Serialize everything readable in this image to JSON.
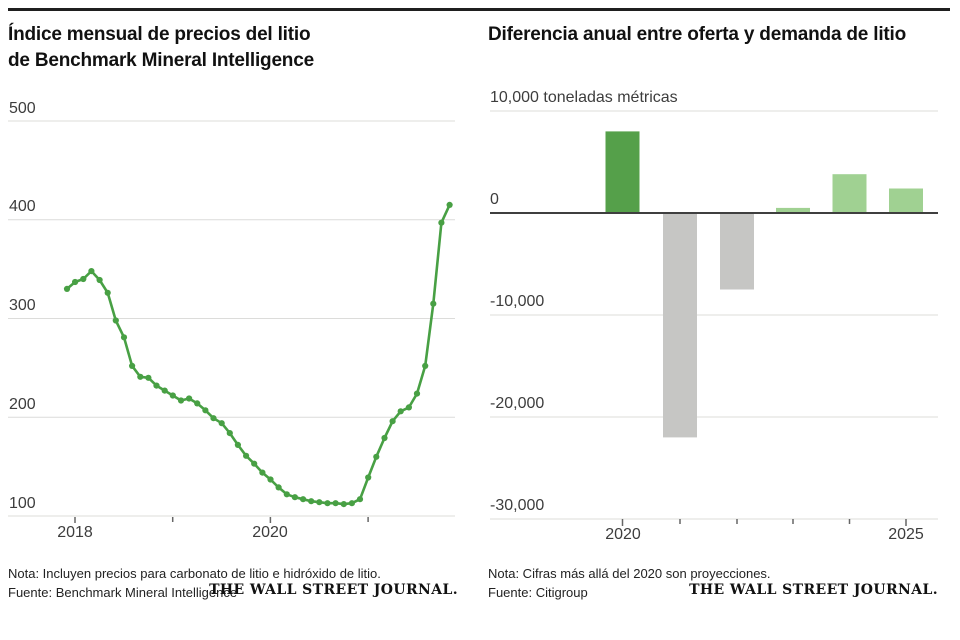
{
  "page": {
    "background": "#ffffff",
    "brand": "THE WALL STREET JOURNAL."
  },
  "left_panel": {
    "title_line1": "Índice mensual de precios del litio",
    "title_line2": "de Benchmark Mineral Intelligence",
    "note": "Nota: Incluyen precios para carbonato de litio e hidróxido de litio.",
    "source": "Fuente: Benchmark Mineral Intelligence",
    "brand": "THE WALL STREET JOURNAL."
  },
  "right_panel": {
    "title": "Diferencia anual entre oferta y demanda de litio",
    "note": "Nota: Cifras más allá del 2020 son proyecciones.",
    "source": "Fuente: Citigroup",
    "brand": "THE WALL STREET JOURNAL."
  },
  "chart_data": [
    {
      "type": "line",
      "title": "Índice mensual de precios del litio de Benchmark Mineral Intelligence",
      "frequency": "monthly",
      "start_month": "2017-12",
      "end_month": "2021-11",
      "values": [
        330,
        337,
        340,
        348,
        339,
        326,
        298,
        281,
        252,
        241,
        240,
        232,
        227,
        222,
        217,
        219,
        214,
        207,
        199,
        194,
        184,
        172,
        161,
        153,
        144,
        137,
        129,
        122,
        119,
        117,
        115,
        114,
        113,
        113,
        112,
        113,
        117,
        139,
        160,
        179,
        196,
        206,
        210,
        224,
        252,
        315,
        397,
        415
      ],
      "ylim": [
        100,
        500
      ],
      "yticks": [
        500,
        400,
        300,
        200,
        100
      ],
      "ytick_labels": [
        "500",
        "400",
        "300",
        "200",
        "100"
      ],
      "xticks": [
        2018,
        2019,
        2020,
        2021
      ],
      "xtick_labels": [
        "2018",
        "",
        "2020",
        ""
      ],
      "grid": true,
      "line_color": "#48a044"
    },
    {
      "type": "bar",
      "title": "Diferencia anual entre oferta y demanda de litio",
      "unit_label": "10,000 toneladas métricas",
      "categories": [
        2020,
        2021,
        2022,
        2023,
        2024,
        2025
      ],
      "values": [
        8000,
        -22000,
        -7500,
        500,
        3800,
        2400
      ],
      "bar_colors": [
        "#55a04a",
        "#c6c6c4",
        "#c6c6c4",
        "#a0d192",
        "#a0d192",
        "#a0d192"
      ],
      "ylim": [
        -30000,
        10000
      ],
      "yticks": [
        10000,
        0,
        -10000,
        -20000,
        -30000
      ],
      "ytick_labels": [
        "10,000 toneladas métricas",
        "0",
        "-10,000",
        "-20,000",
        "-30,000"
      ],
      "xtick_labels": [
        "2020",
        "",
        "",
        "",
        "",
        "2025"
      ],
      "grid": true,
      "zero_line_color": "#3f3f3f"
    }
  ],
  "colors": {
    "grid": "#dcdcda",
    "axis_tick": "#666666",
    "line_green": "#48a044",
    "dark_green": "#55a04a",
    "light_green": "#a0d192",
    "gray_bar": "#c6c6c4"
  }
}
